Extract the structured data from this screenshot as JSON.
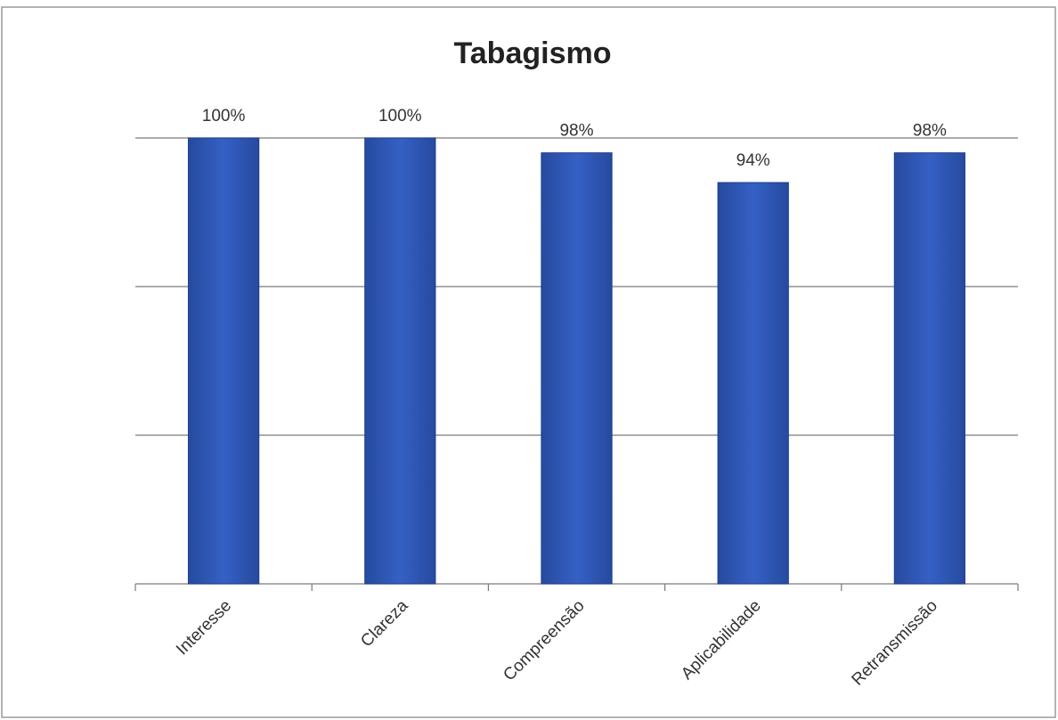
{
  "chart_data": {
    "type": "bar",
    "title": "Tabagismo",
    "categories": [
      "Interesse",
      "Clareza",
      "Compreensão",
      "Aplicabilidade",
      "Retransmissão"
    ],
    "values": [
      100,
      100,
      98,
      94,
      98
    ],
    "value_labels": [
      "100%",
      "100%",
      "98%",
      "94%",
      "98%"
    ],
    "color": "#2f56b9",
    "ylim": [
      40,
      100
    ],
    "yticks": [
      40,
      60,
      80,
      100
    ],
    "grid": true,
    "y_tick_labels": false
  }
}
